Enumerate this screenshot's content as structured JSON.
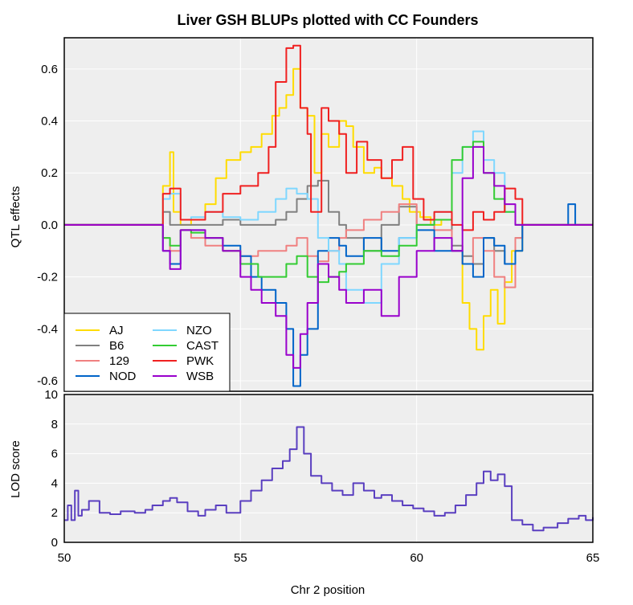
{
  "chart_data": {
    "type": "line",
    "title": "Liver GSH BLUPs plotted with CC Founders",
    "xlabel": "Chr 2 position",
    "xlim": [
      50,
      65
    ],
    "x_ticks": [
      50,
      55,
      60,
      65
    ],
    "grid": true,
    "legend_position": "bottom-left",
    "panels": [
      {
        "name": "effects",
        "ylabel": "QTL effects",
        "ylim": [
          -0.64,
          0.72
        ],
        "y_ticks": [
          0.6,
          0.4,
          0.2,
          0.0,
          -0.2,
          -0.4,
          -0.6
        ],
        "y_tick_labels": [
          "0.6",
          "0.4",
          "0.2",
          "0.0",
          "-0.2",
          "-0.4",
          "-0.6"
        ],
        "series": [
          {
            "name": "AJ",
            "color": "#FFDC00",
            "x": [
              50,
              51.5,
              52.5,
              52.8,
              53.0,
              53.1,
              53.3,
              53.6,
              54.0,
              54.3,
              54.6,
              55.0,
              55.3,
              55.6,
              55.9,
              56.1,
              56.3,
              56.5,
              56.7,
              56.9,
              57.1,
              57.3,
              57.5,
              57.8,
              58.0,
              58.2,
              58.5,
              58.8,
              59.0,
              59.3,
              59.6,
              59.8,
              60.1,
              60.4,
              60.7,
              61.0,
              61.3,
              61.5,
              61.7,
              61.9,
              62.1,
              62.3,
              62.5,
              62.7,
              63.0,
              63.5,
              64.0,
              64.5,
              65
            ],
            "y": [
              0,
              0,
              0,
              0.15,
              0.28,
              0.05,
              0,
              0.02,
              0.08,
              0.18,
              0.25,
              0.28,
              0.3,
              0.35,
              0.42,
              0.45,
              0.5,
              0.6,
              0.45,
              0.42,
              0.2,
              0.35,
              0.3,
              0.4,
              0.38,
              0.3,
              0.2,
              0.22,
              0.18,
              0.15,
              0.1,
              0.05,
              0.03,
              0.0,
              0.02,
              -0.1,
              -0.3,
              -0.4,
              -0.48,
              -0.35,
              -0.25,
              -0.38,
              -0.22,
              -0.1,
              0.0,
              0.0,
              0.0,
              0.0,
              0
            ]
          },
          {
            "name": "B6",
            "color": "#808080",
            "x": [
              50,
              52.5,
              52.8,
              53.0,
              53.3,
              53.6,
              54.0,
              54.5,
              55.0,
              55.5,
              56.0,
              56.3,
              56.6,
              56.9,
              57.2,
              57.5,
              57.8,
              58.0,
              58.5,
              59.0,
              59.5,
              60.0,
              60.5,
              61.0,
              61.3,
              61.6,
              61.9,
              62.2,
              62.5,
              62.8,
              63.0,
              64,
              65
            ],
            "y": [
              0,
              0,
              0.05,
              0.0,
              0.0,
              0.0,
              0.0,
              0.02,
              0.0,
              0.0,
              0.02,
              0.05,
              0.1,
              0.15,
              0.17,
              0.05,
              0.0,
              -0.05,
              -0.1,
              0.0,
              0.07,
              0.0,
              0.02,
              -0.08,
              -0.12,
              -0.15,
              -0.05,
              -0.1,
              -0.15,
              -0.05,
              0.0,
              0,
              0
            ]
          },
          {
            "name": "129",
            "color": "#F08080",
            "x": [
              50,
              52.5,
              52.8,
              53.0,
              53.3,
              53.6,
              54.0,
              54.5,
              55.0,
              55.5,
              56.0,
              56.3,
              56.6,
              56.9,
              57.2,
              57.5,
              57.8,
              58.0,
              58.5,
              59.0,
              59.5,
              60.0,
              60.5,
              61.0,
              61.3,
              61.6,
              61.9,
              62.2,
              62.5,
              62.8,
              63.0,
              64,
              65
            ],
            "y": [
              0,
              0,
              -0.05,
              -0.1,
              -0.02,
              -0.05,
              -0.08,
              -0.1,
              -0.12,
              -0.1,
              -0.1,
              -0.08,
              -0.05,
              -0.12,
              -0.14,
              -0.1,
              -0.05,
              -0.02,
              0.02,
              0.05,
              0.08,
              0.0,
              -0.02,
              -0.1,
              -0.15,
              -0.05,
              -0.1,
              -0.2,
              -0.24,
              -0.05,
              0.0,
              0,
              0
            ]
          },
          {
            "name": "NOD",
            "color": "#0064C9",
            "x": [
              50,
              52.5,
              52.8,
              53.0,
              53.3,
              53.6,
              54.0,
              54.5,
              55.0,
              55.3,
              55.6,
              56.0,
              56.3,
              56.5,
              56.7,
              56.9,
              57.2,
              57.5,
              57.8,
              58.0,
              58.5,
              59.0,
              59.5,
              60.0,
              60.5,
              61.0,
              61.3,
              61.6,
              61.9,
              62.2,
              62.5,
              62.8,
              63.0,
              63.5,
              64.0,
              64.3,
              64.5,
              65
            ],
            "y": [
              0,
              0,
              -0.1,
              -0.15,
              -0.02,
              -0.02,
              -0.05,
              -0.08,
              -0.12,
              -0.2,
              -0.25,
              -0.3,
              -0.4,
              -0.62,
              -0.5,
              -0.4,
              -0.1,
              -0.05,
              -0.08,
              -0.12,
              -0.05,
              -0.1,
              -0.05,
              -0.02,
              -0.1,
              -0.1,
              -0.15,
              -0.2,
              -0.05,
              -0.08,
              -0.15,
              -0.1,
              0.0,
              0.0,
              0.0,
              0.08,
              0.0,
              0
            ]
          },
          {
            "name": "NZO",
            "color": "#7FD7FF",
            "x": [
              50,
              52.5,
              52.8,
              53.0,
              53.3,
              53.6,
              54.0,
              54.5,
              55.0,
              55.5,
              56.0,
              56.3,
              56.6,
              56.9,
              57.2,
              57.5,
              57.8,
              58.0,
              58.5,
              59.0,
              59.5,
              60.0,
              60.5,
              61.0,
              61.3,
              61.6,
              61.9,
              62.2,
              62.5,
              62.8,
              63.0,
              64,
              65
            ],
            "y": [
              0,
              0,
              0.1,
              0.12,
              0.02,
              0.03,
              0.05,
              0.03,
              0.02,
              0.05,
              0.1,
              0.14,
              0.12,
              0.1,
              -0.05,
              -0.1,
              -0.15,
              -0.25,
              -0.3,
              -0.15,
              -0.05,
              0.0,
              0.05,
              0.2,
              0.3,
              0.36,
              0.25,
              0.2,
              0.05,
              0.0,
              0.0,
              0,
              0
            ]
          },
          {
            "name": "CAST",
            "color": "#33CC33",
            "x": [
              50,
              52.5,
              52.8,
              53.0,
              53.3,
              53.6,
              54.0,
              54.5,
              55.0,
              55.5,
              56.0,
              56.3,
              56.6,
              56.9,
              57.2,
              57.5,
              57.8,
              58.0,
              58.5,
              59.0,
              59.5,
              60.0,
              60.5,
              61.0,
              61.3,
              61.6,
              61.9,
              62.2,
              62.5,
              62.8,
              63.0,
              64,
              65
            ],
            "y": [
              0,
              0,
              -0.05,
              -0.08,
              -0.02,
              -0.03,
              -0.05,
              -0.1,
              -0.15,
              -0.2,
              -0.2,
              -0.15,
              -0.12,
              -0.2,
              -0.22,
              -0.2,
              -0.18,
              -0.15,
              -0.1,
              -0.12,
              -0.08,
              0.0,
              0.02,
              0.25,
              0.3,
              0.32,
              0.2,
              0.1,
              0.05,
              0.0,
              0.0,
              0,
              0
            ]
          },
          {
            "name": "PWK",
            "color": "#F02020",
            "x": [
              50,
              51.5,
              52.5,
              52.8,
              53.0,
              53.3,
              53.6,
              54.0,
              54.5,
              55.0,
              55.5,
              55.8,
              56.0,
              56.3,
              56.5,
              56.7,
              56.9,
              57.0,
              57.3,
              57.5,
              57.8,
              58.0,
              58.3,
              58.6,
              59.0,
              59.3,
              59.6,
              59.9,
              60.2,
              60.5,
              61.0,
              61.3,
              61.6,
              61.9,
              62.2,
              62.5,
              62.8,
              63.0,
              64,
              65
            ],
            "y": [
              0,
              0,
              0,
              0.12,
              0.14,
              0.02,
              0.02,
              0.05,
              0.12,
              0.15,
              0.2,
              0.3,
              0.55,
              0.68,
              0.69,
              0.45,
              0.35,
              0.05,
              0.45,
              0.4,
              0.35,
              0.2,
              0.32,
              0.25,
              0.18,
              0.25,
              0.3,
              0.1,
              0.02,
              0.05,
              0.0,
              -0.02,
              0.05,
              0.02,
              0.05,
              0.14,
              0.1,
              0.0,
              0,
              0
            ]
          },
          {
            "name": "WSB",
            "color": "#9900CC",
            "x": [
              50,
              52.5,
              52.8,
              53.0,
              53.3,
              53.6,
              54.0,
              54.5,
              55.0,
              55.3,
              55.6,
              56.0,
              56.3,
              56.5,
              56.7,
              56.9,
              57.2,
              57.5,
              57.8,
              58.0,
              58.5,
              59.0,
              59.5,
              60.0,
              60.5,
              61.0,
              61.3,
              61.6,
              61.9,
              62.2,
              62.5,
              62.8,
              63.0,
              64,
              65
            ],
            "y": [
              0,
              0,
              -0.1,
              -0.17,
              -0.02,
              -0.02,
              -0.05,
              -0.1,
              -0.2,
              -0.25,
              -0.3,
              -0.35,
              -0.5,
              -0.55,
              -0.42,
              -0.3,
              -0.15,
              -0.2,
              -0.25,
              -0.3,
              -0.25,
              -0.35,
              -0.2,
              -0.1,
              -0.05,
              -0.1,
              0.18,
              0.3,
              0.2,
              0.15,
              0.08,
              0.0,
              0.0,
              0,
              0
            ]
          }
        ]
      },
      {
        "name": "lod",
        "ylabel": "LOD score",
        "ylim": [
          0,
          10
        ],
        "y_ticks": [
          0,
          2,
          4,
          6,
          8,
          10
        ],
        "y_tick_labels": [
          "0",
          "2",
          "4",
          "6",
          "8",
          "10"
        ],
        "series": [
          {
            "color": "#5A3FC0",
            "x": [
              50,
              50.1,
              50.2,
              50.3,
              50.4,
              50.5,
              50.7,
              51.0,
              51.3,
              51.6,
              52.0,
              52.3,
              52.5,
              52.8,
              53.0,
              53.2,
              53.5,
              53.8,
              54.0,
              54.3,
              54.6,
              55.0,
              55.3,
              55.6,
              55.9,
              56.2,
              56.4,
              56.6,
              56.8,
              57.0,
              57.3,
              57.6,
              57.9,
              58.2,
              58.5,
              58.8,
              59.0,
              59.3,
              59.6,
              59.9,
              60.2,
              60.5,
              60.8,
              61.1,
              61.4,
              61.7,
              61.9,
              62.1,
              62.3,
              62.5,
              62.7,
              63.0,
              63.3,
              63.6,
              64.0,
              64.3,
              64.6,
              64.8,
              65
            ],
            "y": [
              1.5,
              2.5,
              1.5,
              3.5,
              1.8,
              2.2,
              2.8,
              2.0,
              1.9,
              2.1,
              2.0,
              2.2,
              2.5,
              2.8,
              3.0,
              2.7,
              2.1,
              1.8,
              2.2,
              2.5,
              2.0,
              2.8,
              3.5,
              4.2,
              5.0,
              5.5,
              6.3,
              7.8,
              6.0,
              4.5,
              4.0,
              3.5,
              3.2,
              4.0,
              3.5,
              3.0,
              3.2,
              2.8,
              2.5,
              2.3,
              2.1,
              1.8,
              2.0,
              2.5,
              3.2,
              4.0,
              4.8,
              4.2,
              4.6,
              3.8,
              1.5,
              1.2,
              0.8,
              1.0,
              1.3,
              1.6,
              1.8,
              1.5,
              1.7
            ]
          }
        ]
      }
    ]
  }
}
